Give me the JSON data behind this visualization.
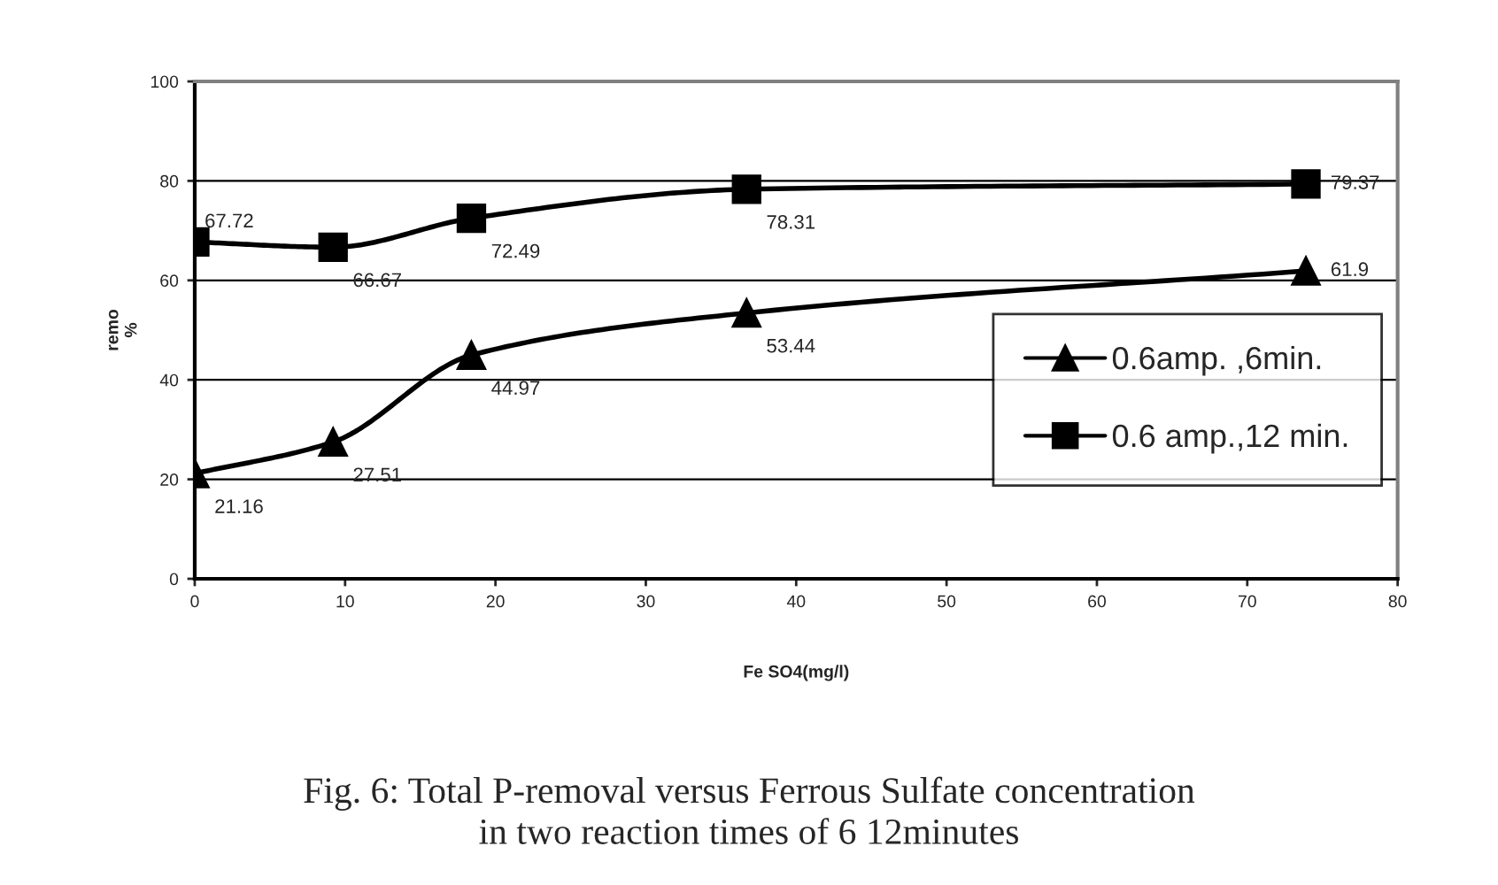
{
  "chart_data": {
    "type": "line",
    "xlabel": "Fe SO4(mg/l)",
    "ylabel": "remo\n%",
    "x": [
      0,
      9.2,
      18.4,
      36.7,
      73.9
    ],
    "series": [
      {
        "name": "0.6amp. ,6min.",
        "color": "#000000",
        "marker": "triangle",
        "values": [
          21.16,
          27.51,
          44.97,
          53.44,
          61.9
        ]
      },
      {
        "name": "0.6 amp.,12 min.",
        "color": "#000000",
        "marker": "square",
        "values": [
          67.72,
          66.67,
          72.49,
          78.31,
          79.37
        ]
      }
    ],
    "xlim": [
      0,
      80
    ],
    "xticks": [
      0,
      10,
      20,
      30,
      40,
      50,
      60,
      70,
      80
    ],
    "ylim": [
      0,
      100
    ],
    "yticks": [
      0,
      20,
      40,
      60,
      80,
      100
    ],
    "grid": "y",
    "legend": "right",
    "data_labels": true,
    "line_style": "solid",
    "annotations": [
      "Fig. 6: Total P-removal versus Ferrous Sulfate concentration\nin two reaction times of 6 12minutes"
    ]
  }
}
